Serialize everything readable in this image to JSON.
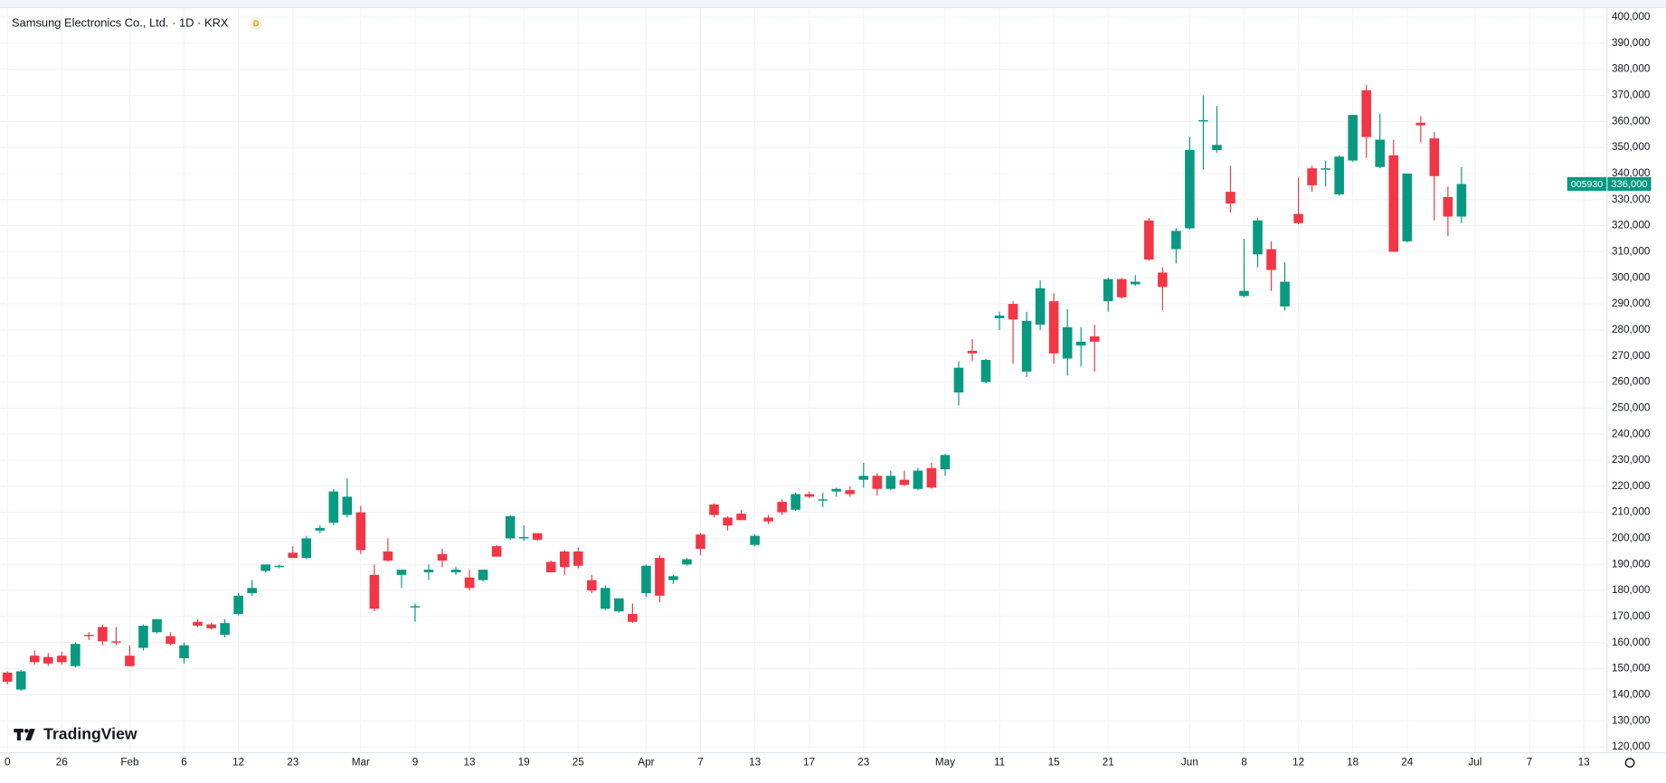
{
  "chart_data": {
    "type": "candlestick",
    "title": "Samsung Electronics Co., Ltd. · 1D · KRX",
    "interval_badge": "D",
    "watermark": "TradingView",
    "symbol": "005930",
    "last_price": {
      "value": 336000,
      "label": "336,000"
    },
    "up_color": "#089981",
    "down_color": "#f23645",
    "grid": true,
    "categories": [
      "0",
      null,
      null,
      null,
      "26",
      null,
      null,
      null,
      null,
      "Feb",
      null,
      null,
      null,
      "6",
      null,
      null,
      null,
      "12",
      null,
      null,
      null,
      "23",
      null,
      null,
      null,
      null,
      "Mar",
      null,
      null,
      null,
      "9",
      null,
      null,
      null,
      "13",
      null,
      null,
      null,
      "19",
      null,
      null,
      null,
      "25",
      null,
      null,
      null,
      null,
      "Apr",
      null,
      null,
      null,
      "7",
      null,
      null,
      null,
      "13",
      null,
      null,
      null,
      "17",
      null,
      null,
      null,
      "23",
      null,
      null,
      null,
      null,
      null,
      "May",
      null,
      null,
      null,
      "11",
      null,
      null,
      null,
      "15",
      null,
      null,
      null,
      "21",
      null,
      null,
      null,
      null,
      null,
      "Jun",
      null,
      null,
      null,
      "8",
      null,
      null,
      null,
      "12",
      null,
      null,
      null,
      "18",
      null,
      null,
      null,
      "24",
      null,
      null,
      null,
      null,
      "Jul",
      null,
      null,
      null,
      "7",
      null,
      null,
      null,
      "13"
    ],
    "open": [
      148500,
      142000,
      155000,
      154500,
      155000,
      151000,
      163000,
      166000,
      160500,
      155000,
      158000,
      164000,
      162500,
      154000,
      168000,
      167000,
      163000,
      171000,
      179000,
      187500,
      189000,
      194500,
      192500,
      203000,
      206000,
      209000,
      210000,
      186000,
      195000,
      186000,
      173500,
      187000,
      194000,
      187000,
      185000,
      184000,
      197000,
      200000,
      200000,
      202000,
      191000,
      195000,
      195000,
      184000,
      173000,
      172000,
      171000,
      179000,
      192500,
      184000,
      190000,
      201500,
      213000,
      208000,
      209500,
      197500,
      208000,
      214000,
      211000,
      217000,
      214500,
      218000,
      218500,
      222500,
      224000,
      219000,
      222500,
      219000,
      227000,
      226500,
      256000,
      272000,
      260000,
      284500,
      290000,
      264000,
      282000,
      291000,
      269000,
      274000,
      277500,
      291000,
      299500,
      297500,
      322000,
      302000,
      311000,
      319000,
      360000,
      349000,
      333000,
      293000,
      309000,
      311000,
      289000,
      324500,
      342000,
      341500,
      332000,
      345000,
      372000,
      342500,
      347000,
      314000,
      359500,
      353500,
      331000,
      323500,
      null,
      null,
      null,
      null,
      null,
      null,
      null,
      null,
      null
    ],
    "high": [
      149000,
      149500,
      157000,
      156000,
      156500,
      160000,
      164000,
      167000,
      166000,
      159000,
      167000,
      169000,
      164000,
      160000,
      169000,
      167500,
      169000,
      179000,
      184000,
      190000,
      190000,
      197000,
      201000,
      205000,
      219000,
      223000,
      212500,
      190000,
      200000,
      188000,
      175000,
      190000,
      196000,
      189000,
      188000,
      188000,
      197500,
      209000,
      205000,
      202000,
      191500,
      195500,
      196500,
      186000,
      182000,
      177000,
      175000,
      190000,
      193500,
      186000,
      192500,
      202000,
      213500,
      208500,
      211000,
      201500,
      209000,
      215000,
      217500,
      218000,
      217500,
      219500,
      220000,
      229000,
      225000,
      226000,
      226000,
      227000,
      229000,
      232500,
      268000,
      276500,
      269000,
      287000,
      291000,
      287000,
      299000,
      294000,
      288000,
      281000,
      282000,
      300000,
      300000,
      301000,
      323000,
      304000,
      319000,
      354000,
      370000,
      366000,
      343000,
      315000,
      323000,
      314000,
      306000,
      338500,
      343000,
      345000,
      347000,
      362500,
      374000,
      363000,
      353000,
      340000,
      362000,
      356000,
      335000,
      342500,
      null,
      null,
      null,
      null,
      null,
      null,
      null,
      null,
      null
    ],
    "low": [
      144000,
      141500,
      151500,
      151000,
      151500,
      150500,
      161000,
      159000,
      159000,
      151000,
      157000,
      163500,
      159000,
      152000,
      166000,
      165000,
      162000,
      170500,
      178000,
      187000,
      188500,
      192500,
      192000,
      202000,
      205000,
      208000,
      194000,
      172000,
      191000,
      181000,
      168000,
      184000,
      189000,
      186000,
      180000,
      183500,
      193000,
      199500,
      199000,
      199000,
      187000,
      186000,
      188500,
      179000,
      172500,
      171500,
      167500,
      177500,
      175500,
      182500,
      189500,
      193500,
      208000,
      203000,
      207000,
      197000,
      205500,
      209000,
      210500,
      215500,
      212000,
      216000,
      216000,
      219500,
      216500,
      218500,
      220000,
      218500,
      219000,
      224000,
      251000,
      268000,
      259500,
      280000,
      267000,
      262000,
      280000,
      267000,
      262500,
      266000,
      264000,
      287000,
      292000,
      297000,
      306500,
      287500,
      305500,
      318500,
      341500,
      348000,
      325000,
      292500,
      304000,
      295000,
      287500,
      320500,
      333000,
      335000,
      331500,
      344500,
      346000,
      342000,
      310000,
      313500,
      352000,
      322000,
      316000,
      321000,
      null,
      null,
      null,
      null,
      null,
      null,
      null,
      null,
      null
    ],
    "close": [
      145000,
      149000,
      152500,
      152000,
      152500,
      159500,
      162500,
      160500,
      160000,
      151000,
      166500,
      169000,
      159500,
      159000,
      166500,
      165500,
      167500,
      178000,
      181000,
      190000,
      189500,
      192500,
      200000,
      204000,
      218000,
      216000,
      195500,
      173000,
      191500,
      188000,
      174000,
      188000,
      191500,
      188000,
      181000,
      188000,
      193000,
      208500,
      200500,
      199500,
      187000,
      189000,
      189500,
      180000,
      181000,
      177000,
      168000,
      189500,
      178000,
      185500,
      192000,
      196000,
      209000,
      205000,
      207000,
      201000,
      206500,
      210000,
      217000,
      216000,
      215000,
      219000,
      217000,
      224000,
      219000,
      224000,
      220500,
      226000,
      219500,
      232000,
      265500,
      271000,
      268500,
      285500,
      284000,
      283500,
      296000,
      271000,
      281000,
      275500,
      275500,
      299500,
      292500,
      298500,
      307000,
      296500,
      318000,
      349000,
      360500,
      351000,
      328500,
      295000,
      322000,
      303000,
      298500,
      321000,
      335500,
      342000,
      346500,
      362500,
      354000,
      353000,
      310000,
      340000,
      358500,
      339000,
      323500,
      336000,
      null,
      null,
      null,
      null,
      null,
      null,
      null,
      null,
      null
    ],
    "ylim": [
      118000,
      403300
    ],
    "yticks": [
      {
        "value": 120000,
        "label": "120,000"
      },
      {
        "value": 130000,
        "label": "130,000"
      },
      {
        "value": 140000,
        "label": "140,000"
      },
      {
        "value": 150000,
        "label": "150,000"
      },
      {
        "value": 160000,
        "label": "160,000"
      },
      {
        "value": 170000,
        "label": "170,000"
      },
      {
        "value": 180000,
        "label": "180,000"
      },
      {
        "value": 190000,
        "label": "190,000"
      },
      {
        "value": 200000,
        "label": "200,000"
      },
      {
        "value": 210000,
        "label": "210,000"
      },
      {
        "value": 220000,
        "label": "220,000"
      },
      {
        "value": 230000,
        "label": "230,000"
      },
      {
        "value": 240000,
        "label": "240,000"
      },
      {
        "value": 250000,
        "label": "250,000"
      },
      {
        "value": 260000,
        "label": "260,000"
      },
      {
        "value": 270000,
        "label": "270,000"
      },
      {
        "value": 280000,
        "label": "280,000"
      },
      {
        "value": 290000,
        "label": "290,000"
      },
      {
        "value": 300000,
        "label": "300,000"
      },
      {
        "value": 310000,
        "label": "310,000"
      },
      {
        "value": 320000,
        "label": "320,000"
      },
      {
        "value": 330000,
        "label": "330,000"
      },
      {
        "value": 340000,
        "label": "340,000"
      },
      {
        "value": 350000,
        "label": "350,000"
      },
      {
        "value": 360000,
        "label": "360,000"
      },
      {
        "value": 370000,
        "label": "370,000"
      },
      {
        "value": 380000,
        "label": "380,000"
      },
      {
        "value": 390000,
        "label": "390,000"
      },
      {
        "value": 400000,
        "label": "400,000"
      }
    ]
  }
}
